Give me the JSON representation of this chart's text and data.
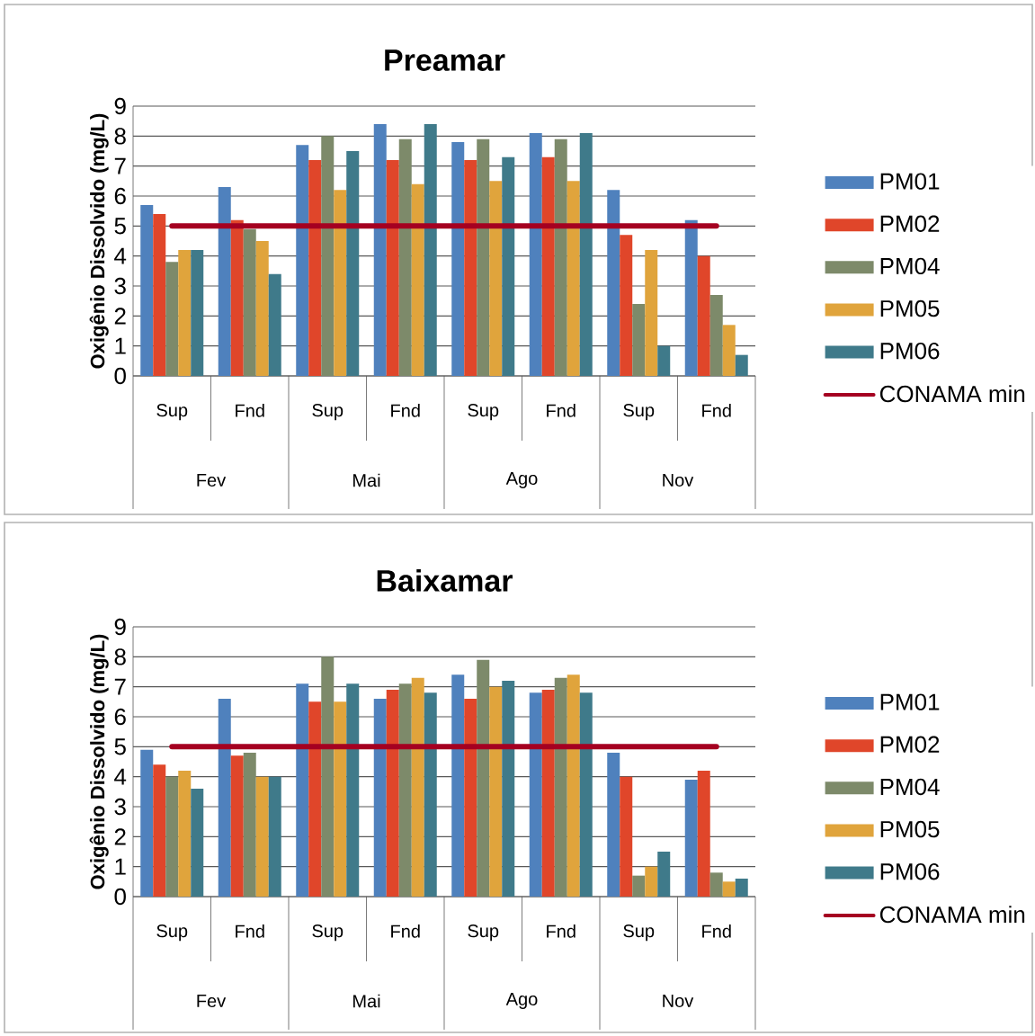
{
  "chart_data": [
    {
      "type": "bar",
      "title": "Preamar",
      "ylabel": "Oxigênio Dissolvido (mg/L)",
      "categories": [
        "Sup",
        "Fnd",
        "Sup",
        "Fnd",
        "Sup",
        "Fnd",
        "Sup",
        "Fnd"
      ],
      "annotations": [
        "Fev",
        "Mai",
        "Ago",
        "Nov"
      ],
      "ylim": [
        0,
        9
      ],
      "yticks": [
        0,
        1,
        2,
        3,
        4,
        5,
        6,
        7,
        8,
        9
      ],
      "grid": "y",
      "legend": "right",
      "series": [
        {
          "name": "PM01",
          "color": "#4f81bd",
          "values": [
            5.7,
            6.3,
            7.7,
            8.4,
            7.8,
            8.1,
            6.2,
            5.2
          ]
        },
        {
          "name": "PM02",
          "color": "#e0462a",
          "values": [
            5.4,
            5.2,
            7.2,
            7.2,
            7.2,
            7.3,
            4.7,
            4.0
          ]
        },
        {
          "name": "PM04",
          "color": "#7d8a6a",
          "values": [
            3.8,
            4.9,
            8.0,
            7.9,
            7.9,
            7.9,
            2.4,
            2.7
          ]
        },
        {
          "name": "PM05",
          "color": "#e0a43c",
          "values": [
            4.2,
            4.5,
            6.2,
            6.4,
            6.5,
            6.5,
            4.2,
            1.7
          ]
        },
        {
          "name": "PM06",
          "color": "#3f7a8a",
          "values": [
            4.2,
            3.4,
            7.5,
            8.4,
            7.3,
            8.1,
            1.0,
            0.7
          ]
        },
        {
          "name": "CONAMA min",
          "type": "line",
          "color": "#a50021",
          "values": [
            5,
            5,
            5,
            5,
            5,
            5,
            5,
            5
          ]
        }
      ]
    },
    {
      "type": "bar",
      "title": "Baixamar",
      "ylabel": "Oxigênio Dissolvido (mg/L)",
      "categories": [
        "Sup",
        "Fnd",
        "Sup",
        "Fnd",
        "Sup",
        "Fnd",
        "Sup",
        "Fnd"
      ],
      "annotations": [
        "Fev",
        "Mai",
        "Ago",
        "Nov"
      ],
      "ylim": [
        0,
        9
      ],
      "yticks": [
        0,
        1,
        2,
        3,
        4,
        5,
        6,
        7,
        8,
        9
      ],
      "grid": "y",
      "legend": "right",
      "series": [
        {
          "name": "PM01",
          "color": "#4f81bd",
          "values": [
            4.9,
            6.6,
            7.1,
            6.6,
            7.4,
            6.8,
            4.8,
            3.9
          ]
        },
        {
          "name": "PM02",
          "color": "#e0462a",
          "values": [
            4.4,
            4.7,
            6.5,
            6.9,
            6.6,
            6.9,
            4.0,
            4.2
          ]
        },
        {
          "name": "PM04",
          "color": "#7d8a6a",
          "values": [
            4.0,
            4.8,
            8.0,
            7.1,
            7.9,
            7.3,
            0.7,
            0.8
          ]
        },
        {
          "name": "PM05",
          "color": "#e0a43c",
          "values": [
            4.2,
            4.0,
            6.5,
            7.3,
            7.0,
            7.4,
            1.0,
            0.5
          ]
        },
        {
          "name": "PM06",
          "color": "#3f7a8a",
          "values": [
            3.6,
            4.0,
            7.1,
            6.8,
            7.2,
            6.8,
            1.5,
            0.6
          ]
        },
        {
          "name": "CONAMA min",
          "type": "line",
          "color": "#a50021",
          "values": [
            5,
            5,
            5,
            5,
            5,
            5,
            5,
            5
          ]
        }
      ]
    }
  ]
}
